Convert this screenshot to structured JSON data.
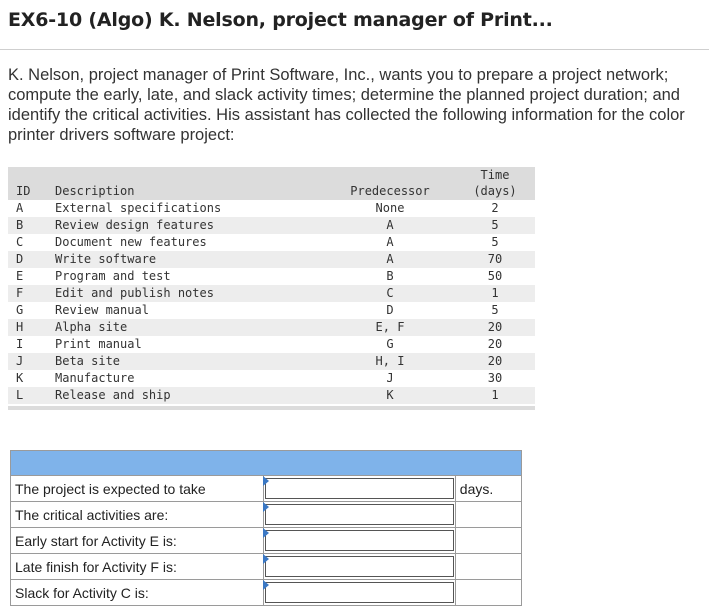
{
  "title": "EX6-10 (Algo) K. Nelson, project manager of Print...",
  "intro": "K. Nelson, project manager of Print Software, Inc., wants you to prepare a project network; compute the early, late, and slack activity times; determine the planned project duration; and identify the critical activities. His assistant has collected the following information for the color printer drivers software project:",
  "activity_table": {
    "headers": {
      "id": "ID",
      "description": "Description",
      "predecessor": "Predecessor",
      "time_line1": "Time",
      "time_line2": "(days)"
    },
    "rows": [
      {
        "id": "A",
        "description": "External specifications",
        "predecessor": "None",
        "time": "2"
      },
      {
        "id": "B",
        "description": "Review design features",
        "predecessor": "A",
        "time": "5"
      },
      {
        "id": "C",
        "description": "Document new features",
        "predecessor": "A",
        "time": "5"
      },
      {
        "id": "D",
        "description": "Write software",
        "predecessor": "A",
        "time": "70"
      },
      {
        "id": "E",
        "description": "Program and test",
        "predecessor": "B",
        "time": "50"
      },
      {
        "id": "F",
        "description": "Edit and publish notes",
        "predecessor": "C",
        "time": "1"
      },
      {
        "id": "G",
        "description": "Review manual",
        "predecessor": "D",
        "time": "5"
      },
      {
        "id": "H",
        "description": "Alpha site",
        "predecessor": "E, F",
        "time": "20"
      },
      {
        "id": "I",
        "description": "Print manual",
        "predecessor": "G",
        "time": "20"
      },
      {
        "id": "J",
        "description": "Beta site",
        "predecessor": "H, I",
        "time": "20"
      },
      {
        "id": "K",
        "description": "Manufacture",
        "predecessor": "J",
        "time": "30"
      },
      {
        "id": "L",
        "description": "Release and ship",
        "predecessor": "K",
        "time": "1"
      }
    ]
  },
  "answer_table": {
    "rows": [
      {
        "label": "The project is expected to take",
        "value": "",
        "unit": "days."
      },
      {
        "label": "The critical activities are:",
        "value": "",
        "unit": ""
      },
      {
        "label": "Early start for Activity E is:",
        "value": "",
        "unit": ""
      },
      {
        "label": "Late finish for Activity F is:",
        "value": "",
        "unit": ""
      },
      {
        "label": "Slack for Activity C is:",
        "value": "",
        "unit": ""
      }
    ]
  },
  "colors": {
    "header_blue": "#7fb3ea",
    "marker_blue": "#3b78c4",
    "table_gray": "#dcdcdc"
  }
}
